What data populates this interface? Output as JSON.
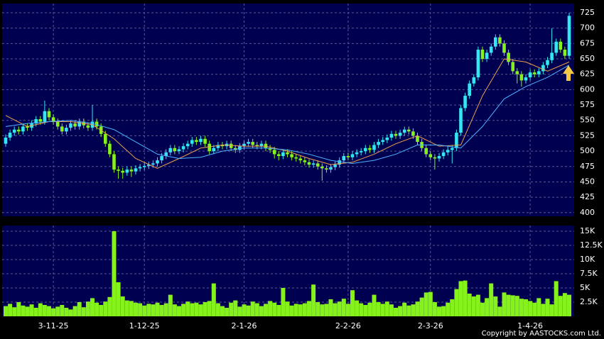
{
  "chart_data": {
    "type": "candlestick",
    "categories": [
      null,
      null,
      null,
      null,
      null,
      null,
      null,
      null,
      null,
      null,
      null,
      "3-11-25",
      null,
      null,
      null,
      null,
      null,
      null,
      null,
      null,
      null,
      null,
      null,
      null,
      null,
      null,
      null,
      null,
      null,
      null,
      null,
      null,
      "1-12-25",
      null,
      null,
      null,
      null,
      null,
      null,
      null,
      null,
      null,
      null,
      null,
      null,
      null,
      null,
      null,
      null,
      null,
      null,
      null,
      null,
      null,
      null,
      "2-1-26",
      null,
      null,
      null,
      null,
      null,
      null,
      null,
      null,
      null,
      null,
      null,
      null,
      null,
      null,
      null,
      null,
      null,
      null,
      null,
      null,
      null,
      null,
      null,
      "2-2-26",
      null,
      null,
      null,
      null,
      null,
      null,
      null,
      null,
      null,
      null,
      null,
      null,
      null,
      null,
      null,
      null,
      null,
      null,
      "2-3-26",
      null,
      null,
      null,
      null,
      null,
      null,
      null,
      null,
      null,
      null,
      null,
      null,
      null,
      null,
      null,
      null,
      null,
      null,
      null,
      null,
      null,
      null,
      "1-4-26",
      null,
      null,
      null,
      null,
      null,
      null,
      null,
      null,
      null
    ],
    "open": [
      512,
      522,
      530,
      535,
      532,
      540,
      538,
      545,
      552,
      548,
      565,
      555,
      548,
      540,
      532,
      538,
      545,
      540,
      548,
      542,
      538,
      548,
      540,
      528,
      512,
      495,
      470,
      468,
      465,
      470,
      467,
      472,
      474,
      476,
      478,
      480,
      485,
      492,
      498,
      505,
      500,
      503,
      508,
      512,
      518,
      515,
      520,
      512,
      500,
      505,
      510,
      508,
      512,
      505,
      502,
      508,
      512,
      515,
      510,
      508,
      512,
      505,
      502,
      495,
      492,
      498,
      495,
      490,
      488,
      485,
      482,
      478,
      480,
      475,
      472,
      470,
      474,
      478,
      485,
      492,
      490,
      495,
      498,
      500,
      505,
      502,
      510,
      515,
      518,
      522,
      528,
      525,
      530,
      535,
      532,
      525,
      515,
      505,
      495,
      490,
      488,
      492,
      498,
      502,
      505,
      530,
      570,
      590,
      610,
      620,
      665,
      650,
      660,
      670,
      685,
      675,
      660,
      645,
      630,
      625,
      615,
      620,
      628,
      625,
      630,
      640,
      648,
      660,
      678,
      665,
      655
    ],
    "high": [
      527,
      535,
      540,
      540,
      545,
      545,
      550,
      557,
      557,
      582,
      570,
      560,
      553,
      545,
      543,
      550,
      550,
      553,
      553,
      547,
      575,
      553,
      545,
      533,
      517,
      500,
      475,
      473,
      475,
      475,
      477,
      479,
      481,
      483,
      485,
      490,
      497,
      503,
      510,
      510,
      508,
      513,
      517,
      523,
      523,
      525,
      525,
      517,
      510,
      515,
      515,
      517,
      517,
      510,
      513,
      517,
      520,
      520,
      515,
      517,
      517,
      510,
      507,
      500,
      503,
      503,
      500,
      495,
      493,
      490,
      487,
      485,
      485,
      480,
      477,
      479,
      483,
      490,
      497,
      497,
      500,
      503,
      505,
      510,
      510,
      515,
      520,
      523,
      527,
      533,
      533,
      535,
      540,
      540,
      537,
      530,
      520,
      510,
      500,
      495,
      497,
      503,
      507,
      510,
      535,
      575,
      595,
      615,
      625,
      670,
      670,
      665,
      675,
      690,
      690,
      680,
      665,
      650,
      635,
      630,
      625,
      633,
      633,
      635,
      645,
      653,
      700,
      683,
      683,
      670,
      725
    ],
    "low": [
      507,
      517,
      525,
      527,
      527,
      533,
      533,
      540,
      543,
      543,
      550,
      543,
      535,
      527,
      527,
      533,
      535,
      535,
      537,
      533,
      533,
      535,
      523,
      507,
      490,
      465,
      455,
      455,
      460,
      458,
      462,
      467,
      469,
      471,
      473,
      475,
      480,
      487,
      493,
      495,
      495,
      498,
      503,
      507,
      510,
      510,
      507,
      495,
      495,
      500,
      503,
      503,
      500,
      497,
      497,
      503,
      507,
      505,
      503,
      503,
      500,
      497,
      488,
      485,
      487,
      490,
      485,
      483,
      480,
      477,
      473,
      473,
      470,
      452,
      465,
      465,
      469,
      473,
      480,
      485,
      485,
      490,
      493,
      495,
      497,
      497,
      505,
      510,
      513,
      517,
      520,
      520,
      525,
      527,
      520,
      510,
      500,
      490,
      485,
      470,
      483,
      487,
      493,
      480,
      500,
      525,
      565,
      585,
      605,
      615,
      645,
      645,
      655,
      665,
      670,
      655,
      640,
      625,
      610,
      605,
      610,
      615,
      620,
      620,
      625,
      635,
      643,
      655,
      660,
      650,
      650
    ],
    "close": [
      522,
      530,
      535,
      532,
      540,
      538,
      545,
      552,
      548,
      565,
      555,
      548,
      540,
      532,
      538,
      545,
      540,
      548,
      542,
      538,
      548,
      540,
      528,
      512,
      495,
      470,
      468,
      465,
      470,
      467,
      472,
      474,
      476,
      478,
      480,
      485,
      492,
      498,
      505,
      500,
      503,
      508,
      512,
      518,
      515,
      520,
      512,
      500,
      505,
      510,
      508,
      512,
      505,
      502,
      508,
      512,
      515,
      510,
      508,
      512,
      505,
      502,
      495,
      492,
      498,
      495,
      490,
      488,
      485,
      482,
      478,
      480,
      475,
      472,
      470,
      474,
      478,
      485,
      492,
      490,
      495,
      498,
      500,
      505,
      502,
      510,
      515,
      518,
      522,
      528,
      525,
      530,
      535,
      532,
      525,
      515,
      505,
      495,
      490,
      488,
      492,
      498,
      502,
      505,
      530,
      570,
      590,
      610,
      620,
      665,
      650,
      660,
      670,
      685,
      675,
      660,
      645,
      630,
      625,
      615,
      620,
      628,
      625,
      630,
      640,
      648,
      660,
      678,
      665,
      655,
      720
    ],
    "up_color": "#33e6f2",
    "down_color": "#86f21c",
    "lines": [
      {
        "color": "#f0a050",
        "x": [
          0,
          5,
          10,
          15,
          20,
          25,
          30,
          35,
          40,
          45,
          50,
          55,
          60,
          65,
          70,
          75,
          80,
          85,
          90,
          95,
          100,
          105,
          110,
          115,
          120,
          125,
          130
        ],
        "values": [
          558,
          540,
          548,
          548,
          543,
          520,
          488,
          472,
          488,
          505,
          510,
          508,
          508,
          500,
          488,
          478,
          482,
          495,
          512,
          525,
          508,
          510,
          590,
          650,
          645,
          630,
          645
        ]
      },
      {
        "color": "#4fb4ff",
        "x": [
          0,
          5,
          10,
          15,
          20,
          25,
          30,
          35,
          40,
          45,
          50,
          55,
          60,
          65,
          70,
          75,
          80,
          85,
          90,
          95,
          100,
          105,
          110,
          115,
          120,
          125,
          130
        ],
        "values": [
          540,
          545,
          548,
          550,
          545,
          535,
          515,
          495,
          488,
          490,
          500,
          505,
          505,
          502,
          495,
          485,
          480,
          485,
          495,
          510,
          510,
          505,
          540,
          585,
          605,
          620,
          640
        ]
      }
    ],
    "ylim": [
      394,
      740
    ],
    "yticks": [
      400,
      425,
      450,
      475,
      500,
      525,
      550,
      575,
      600,
      625,
      650,
      675,
      700,
      725
    ],
    "volume": {
      "color": "#86f21c",
      "values": [
        1800,
        2200,
        1600,
        2500,
        1900,
        1700,
        2100,
        1500,
        2300,
        2000,
        1800,
        1400,
        1700,
        2000,
        1500,
        1200,
        1800,
        2500,
        1600,
        2600,
        3200,
        2400,
        2000,
        2600,
        3400,
        15000,
        6000,
        3500,
        2800,
        2700,
        2400,
        2300,
        1900,
        2200,
        2100,
        2400,
        2000,
        2300,
        3800,
        2100,
        1800,
        2200,
        2600,
        2300,
        2400,
        2100,
        2500,
        2700,
        5800,
        2300,
        1800,
        1500,
        2400,
        2800,
        1700,
        2100,
        1900,
        2600,
        2300,
        1800,
        2200,
        2700,
        2400,
        2000,
        5000,
        2600,
        1900,
        2200,
        2100,
        2300,
        2700,
        5600,
        2500,
        2100,
        2200,
        3000,
        2300,
        2600,
        3100,
        2200,
        4600,
        2800,
        2300,
        2000,
        2400,
        3800,
        2500,
        2200,
        2600,
        2100,
        1500,
        1800,
        2400,
        1900,
        2100,
        2600,
        3300,
        4200,
        4300,
        2500,
        1700,
        1800,
        2400,
        3000,
        4800,
        6200,
        6300,
        4000,
        3500,
        3800,
        2400,
        3200,
        5800,
        3500,
        1700,
        4200,
        3800,
        3700,
        3600,
        3100,
        3000,
        2700,
        2400,
        3200,
        2200,
        3100,
        2100,
        6200,
        3600,
        4100,
        3800
      ],
      "ylim": [
        0,
        16000
      ],
      "yticks": [
        {
          "value": 2500,
          "label": "2.5K"
        },
        {
          "value": 5000,
          "label": "5K"
        },
        {
          "value": 7500,
          "label": "7.5K"
        },
        {
          "value": 10000,
          "label": "10K"
        },
        {
          "value": 12500,
          "label": "12.5K"
        },
        {
          "value": 15000,
          "label": "15K"
        }
      ]
    },
    "grid": true,
    "copyright": "Copyright by AASTOCKS.com Ltd."
  }
}
